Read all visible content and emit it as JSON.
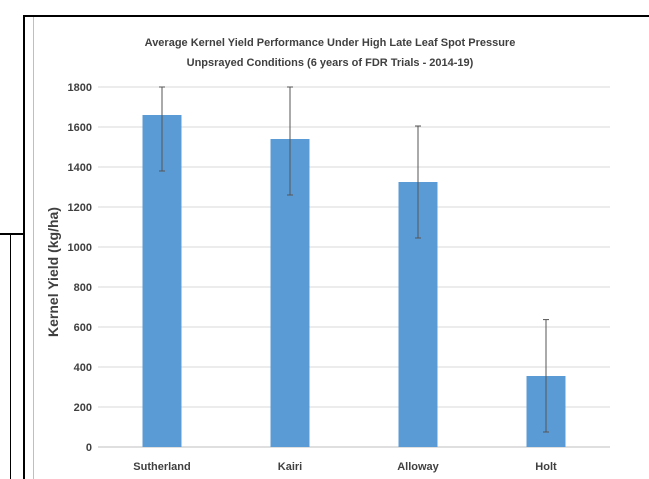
{
  "chart_data": {
    "type": "bar",
    "title": "Average Kernel Yield Performance Under High Late Leaf Spot Pressure",
    "subtitle": "Unpsrayed  Conditions (6 years of FDR Trials - 2014-19)",
    "xlabel": "",
    "ylabel": "Kernel Yield (kg/ha)",
    "categories": [
      "Sutherland",
      "Kairi",
      "Alloway",
      "Holt"
    ],
    "values": [
      1660,
      1540,
      1325,
      355
    ],
    "error_low": [
      1380,
      1260,
      1045,
      75
    ],
    "error_high": [
      1800,
      1800,
      1605,
      637
    ],
    "ylim": [
      0,
      1800
    ],
    "yticks": [
      "0",
      "200",
      "400",
      "600",
      "800",
      "1000",
      "1200",
      "1400",
      "1600",
      "1800"
    ],
    "grid": true,
    "legend": "none",
    "colors": {
      "bar": "#5b9bd5",
      "grid": "#d9d9d9",
      "text": "#404040",
      "error": "#555555"
    }
  }
}
